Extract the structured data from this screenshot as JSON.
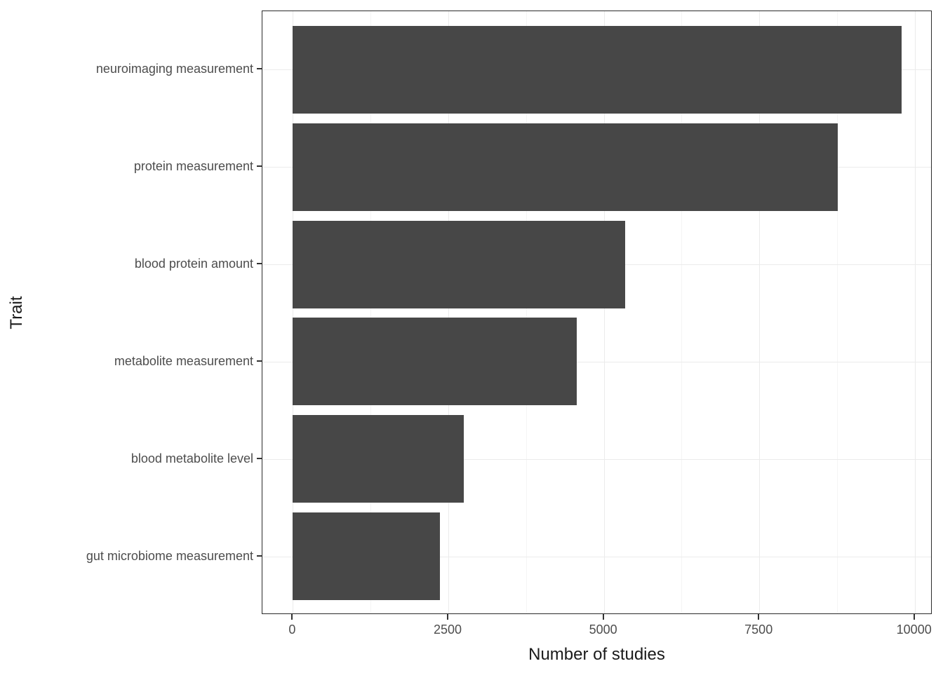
{
  "chart_data": {
    "type": "bar",
    "orientation": "horizontal",
    "title": "",
    "categories": [
      "neuroimaging measurement",
      "protein measurement",
      "blood protein amount",
      "metabolite measurement",
      "blood metabolite level",
      "gut microbiome measurement"
    ],
    "values": [
      9795,
      8760,
      5340,
      4565,
      2745,
      2360
    ],
    "xlabel": "Number of studies",
    "ylabel": "Trait",
    "x_major_ticks": [
      0,
      2500,
      5000,
      7500,
      10000
    ],
    "x_minor_ticks": [
      1250,
      3750,
      6250,
      8750
    ],
    "xlim": [
      -490,
      10285
    ],
    "bar_width_fraction": 0.9,
    "legend": "none",
    "grid": "major-and-minor",
    "colors": {
      "bar_fill": "#474747",
      "panel_background": "#ffffff",
      "panel_border": "#2b2b2b",
      "grid_major": "#ebebeb",
      "grid_minor": "#f5f5f5",
      "tick_mark": "#333333",
      "tick_label": "#4d4d4d",
      "axis_title": "#1a1a1a",
      "figure_background": "#ffffff"
    }
  }
}
